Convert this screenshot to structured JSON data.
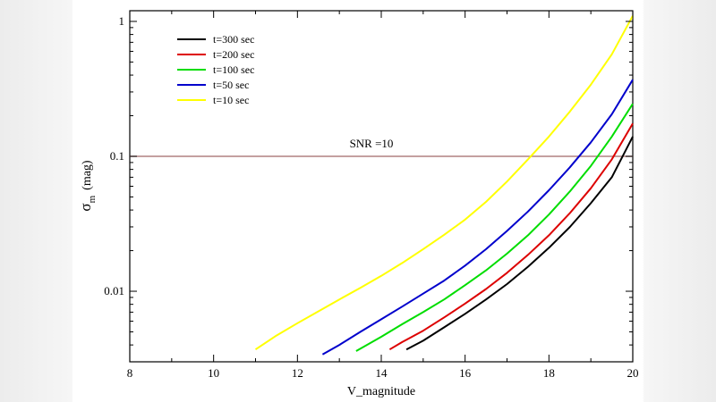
{
  "chart_data": {
    "type": "line",
    "title": "",
    "xlabel": "V_magnitude",
    "ylabel_symbol": "σ",
    "ylabel_subscript": "m",
    "ylabel_unit": "(mag)",
    "xlim": [
      8,
      20
    ],
    "ylim": [
      0.003,
      1.2
    ],
    "yscale": "log",
    "x_ticks": [
      8,
      10,
      12,
      14,
      16,
      18,
      20
    ],
    "x_tick_labels": [
      "8",
      "10",
      "12",
      "14",
      "16",
      "18",
      "20"
    ],
    "y_ticks": [
      0.01,
      0.1,
      1
    ],
    "y_tick_labels": [
      "0.01",
      "0.1",
      "1"
    ],
    "legend_position": "top-left",
    "series": [
      {
        "name": "t=300 sec",
        "color": "#000000",
        "x": [
          14.6,
          15.0,
          15.5,
          16.0,
          16.5,
          17.0,
          17.5,
          18.0,
          18.5,
          19.0,
          19.5,
          20.0
        ],
        "y": [
          0.0037,
          0.0043,
          0.0054,
          0.0068,
          0.0087,
          0.0113,
          0.0152,
          0.021,
          0.03,
          0.045,
          0.07,
          0.14
        ]
      },
      {
        "name": "t=200 sec",
        "color": "#dd0000",
        "x": [
          14.2,
          14.5,
          15.0,
          15.5,
          16.0,
          16.5,
          17.0,
          17.5,
          18.0,
          18.5,
          19.0,
          19.5,
          20.0
        ],
        "y": [
          0.0037,
          0.0042,
          0.0051,
          0.0064,
          0.0081,
          0.0104,
          0.0137,
          0.0186,
          0.026,
          0.038,
          0.058,
          0.095,
          0.175
        ]
      },
      {
        "name": "t=100 sec",
        "color": "#00dd00",
        "x": [
          13.4,
          14.0,
          14.5,
          15.0,
          15.5,
          16.0,
          16.5,
          17.0,
          17.5,
          18.0,
          18.5,
          19.0,
          19.5,
          20.0
        ],
        "y": [
          0.0036,
          0.0046,
          0.0057,
          0.007,
          0.0087,
          0.0111,
          0.0143,
          0.019,
          0.026,
          0.037,
          0.055,
          0.085,
          0.14,
          0.245
        ]
      },
      {
        "name": "t=50 sec",
        "color": "#0000cc",
        "x": [
          12.6,
          13.0,
          13.5,
          14.0,
          14.5,
          15.0,
          15.5,
          16.0,
          16.5,
          17.0,
          17.5,
          18.0,
          18.5,
          19.0,
          19.5,
          20.0
        ],
        "y": [
          0.0034,
          0.004,
          0.005,
          0.0062,
          0.0077,
          0.0096,
          0.012,
          0.0155,
          0.0205,
          0.028,
          0.039,
          0.056,
          0.083,
          0.127,
          0.205,
          0.37
        ]
      },
      {
        "name": "t=10 sec",
        "color": "#ffff00",
        "x": [
          11.0,
          11.5,
          12.0,
          12.5,
          13.0,
          13.5,
          14.0,
          14.5,
          15.0,
          15.5,
          16.0,
          16.5,
          17.0,
          17.5,
          18.0,
          18.5,
          19.0,
          19.5,
          20.0
        ],
        "y": [
          0.0037,
          0.0047,
          0.0058,
          0.0071,
          0.0087,
          0.0106,
          0.013,
          0.0162,
          0.0205,
          0.0262,
          0.034,
          0.046,
          0.065,
          0.095,
          0.14,
          0.215,
          0.34,
          0.57,
          1.1
        ]
      }
    ],
    "hline": {
      "y": 0.1,
      "label": "SNR =10",
      "color": "#b08080"
    }
  }
}
